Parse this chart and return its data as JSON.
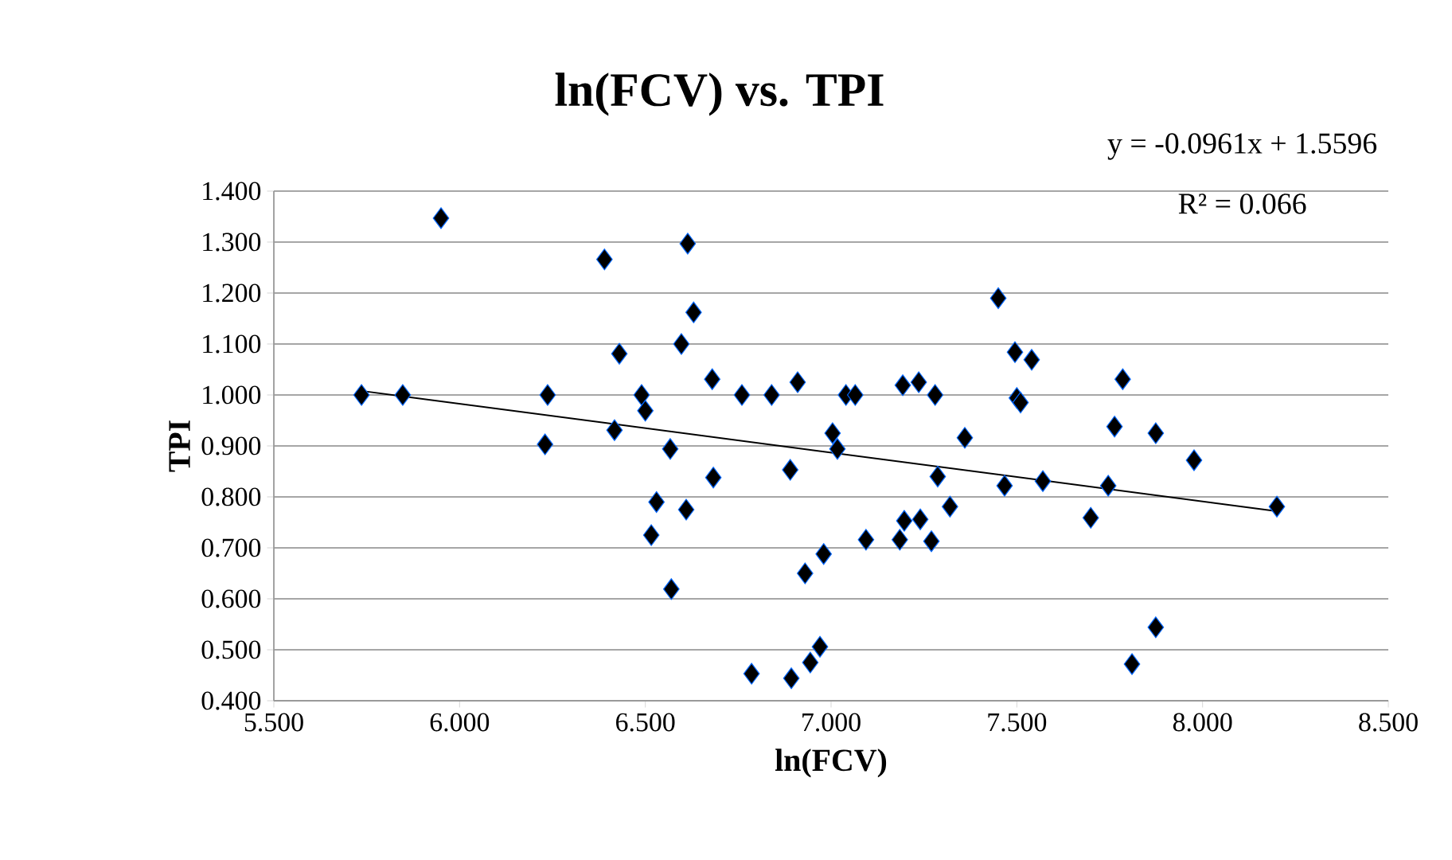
{
  "chart_data": {
    "type": "scatter",
    "title": "ln(FCV) vs. TPI",
    "xlabel": "ln(FCV)",
    "ylabel": "TPI",
    "annotations": [
      "y = -0.0961x + 1.5596",
      "R² = 0.066"
    ],
    "xlim": [
      5.5,
      8.5
    ],
    "xticks": [
      {
        "value": 5.5,
        "label": "5.500"
      },
      {
        "value": 6.0,
        "label": "6.000"
      },
      {
        "value": 6.5,
        "label": "6.500"
      },
      {
        "value": 7.0,
        "label": "7.000"
      },
      {
        "value": 7.5,
        "label": "7.500"
      },
      {
        "value": 8.0,
        "label": "8.000"
      },
      {
        "value": 8.5,
        "label": "8.500"
      }
    ],
    "ylim": [
      0.4,
      1.4
    ],
    "yticks": [
      {
        "value": 0.4,
        "label": "0.400"
      },
      {
        "value": 0.5,
        "label": "0.500"
      },
      {
        "value": 0.6,
        "label": "0.600"
      },
      {
        "value": 0.7,
        "label": "0.700"
      },
      {
        "value": 0.8,
        "label": "0.800"
      },
      {
        "value": 0.9,
        "label": "0.900"
      },
      {
        "value": 1.0,
        "label": "1.000"
      },
      {
        "value": 1.1,
        "label": "1.100"
      },
      {
        "value": 1.2,
        "label": "1.200"
      },
      {
        "value": 1.3,
        "label": "1.300"
      },
      {
        "value": 1.4,
        "label": "1.400"
      }
    ],
    "grid": "y",
    "series": [
      {
        "marker": "diamond",
        "color": "#000000",
        "x": [
          5.736,
          5.847,
          5.95,
          6.237,
          6.23,
          6.39,
          6.43,
          6.49,
          6.5,
          6.417,
          6.614,
          6.63,
          6.597,
          6.567,
          6.53,
          6.516,
          6.61,
          6.57,
          6.68,
          6.683,
          6.76,
          6.84,
          6.91,
          6.89,
          6.786,
          6.893,
          6.944,
          6.97,
          6.93,
          6.98,
          7.004,
          7.017,
          7.04,
          7.065,
          7.094,
          7.185,
          7.197,
          7.193,
          7.236,
          7.24,
          7.28,
          7.287,
          7.27,
          7.32,
          7.36,
          7.45,
          7.495,
          7.54,
          7.5,
          7.51,
          7.467,
          7.57,
          7.699,
          7.746,
          7.763,
          7.785,
          7.874,
          7.977,
          8.2,
          7.874,
          7.81
        ],
        "values": [
          1.0,
          1.0,
          1.347,
          1.0,
          0.903,
          1.266,
          1.081,
          1.0,
          0.969,
          0.931,
          1.297,
          1.162,
          1.1,
          0.894,
          0.79,
          0.725,
          0.775,
          0.619,
          1.031,
          0.838,
          1.0,
          1.0,
          1.025,
          0.853,
          0.453,
          0.444,
          0.475,
          0.506,
          0.65,
          0.688,
          0.925,
          0.894,
          1.0,
          1.0,
          0.716,
          0.716,
          0.753,
          1.019,
          1.025,
          0.756,
          1.0,
          0.84,
          0.713,
          0.781,
          0.916,
          1.19,
          1.084,
          1.069,
          0.994,
          0.985,
          0.822,
          0.831,
          0.759,
          0.822,
          0.938,
          1.031,
          0.925,
          0.872,
          0.781,
          0.544,
          0.472
        ]
      },
      {
        "type": "line",
        "marker": "none",
        "color": "#000000",
        "x": [
          5.736,
          8.2
        ],
        "values": [
          1.008,
          0.772
        ]
      }
    ]
  }
}
